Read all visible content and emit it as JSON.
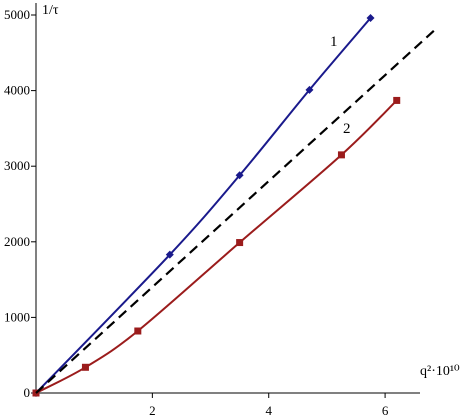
{
  "chart_data": {
    "type": "line",
    "title": "",
    "ylabel": "1/τ",
    "xlabel": "q²·10¹⁰",
    "xlim": [
      0,
      6.6
    ],
    "ylim": [
      0,
      5000
    ],
    "x_ticks": [
      2,
      4,
      6
    ],
    "x_tick_labels": [
      "2",
      "4",
      "6"
    ],
    "y_ticks": [
      0,
      1000,
      2000,
      3000,
      4000,
      5000
    ],
    "y_tick_labels": [
      "0",
      "1000",
      "2000",
      "3000",
      "4000",
      "5000"
    ],
    "grid": false,
    "series": [
      {
        "name": "1",
        "color": "#1a1a8c",
        "marker": "diamond",
        "x": [
          0,
          2.3,
          3.5,
          4.7,
          5.75
        ],
        "y": [
          0,
          1830,
          2880,
          4010,
          4960
        ]
      },
      {
        "name": "2",
        "color": "#9b1c1c",
        "marker": "square",
        "x": [
          0,
          0.85,
          1.75,
          3.5,
          5.25,
          6.2
        ],
        "y": [
          0,
          340,
          820,
          1990,
          3150,
          3870
        ]
      },
      {
        "name": "",
        "color": "#000000",
        "line_style": "dashed",
        "marker": "none",
        "x": [
          0,
          6.85
        ],
        "y": [
          0,
          4800
        ]
      }
    ]
  }
}
